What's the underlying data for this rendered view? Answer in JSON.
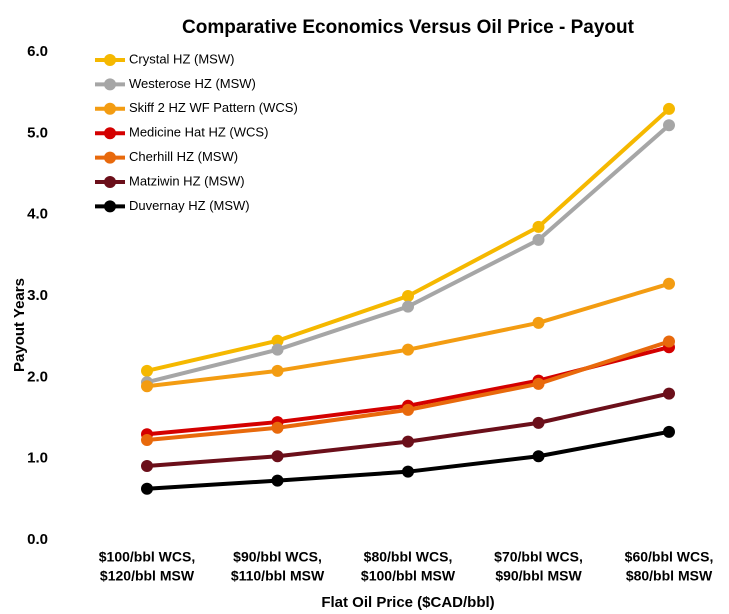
{
  "chart_data": {
    "type": "line",
    "title": "Comparative Economics Versus Oil Price - Payout",
    "x_label": "Flat Oil Price ($CAD/bbl)",
    "y_label": "Payout Years",
    "categories": [
      [
        "$100/bbl WCS,",
        "$120/bbl MSW"
      ],
      [
        "$90/bbl WCS,",
        "$110/bbl MSW"
      ],
      [
        "$80/bbl WCS,",
        "$100/bbl MSW"
      ],
      [
        "$70/bbl WCS,",
        "$90/bbl MSW"
      ],
      [
        "$60/bbl WCS,",
        "$80/bbl MSW"
      ]
    ],
    "ylim": [
      0,
      6
    ],
    "yticks": [
      {
        "value": 0,
        "label": "0.0"
      },
      {
        "value": 1,
        "label": "1.0"
      },
      {
        "value": 2,
        "label": "2.0"
      },
      {
        "value": 3,
        "label": "3.0"
      },
      {
        "value": 4,
        "label": "4.0"
      },
      {
        "value": 5,
        "label": "5.0"
      },
      {
        "value": 6,
        "label": "6.0"
      }
    ],
    "grid": false,
    "legend": "upper-left",
    "series": [
      {
        "name": "Crystal HZ (MSW)",
        "color": "#f5b800",
        "values": [
          2.08,
          2.45,
          3.0,
          3.85,
          5.3
        ]
      },
      {
        "name": "Westerose HZ (MSW)",
        "color": "#a6a6a6",
        "values": [
          1.94,
          2.34,
          2.87,
          3.69,
          5.1
        ]
      },
      {
        "name": "Skiff 2 HZ WF Pattern (WCS)",
        "color": "#f39c12",
        "values": [
          1.89,
          2.08,
          2.34,
          2.67,
          3.15
        ]
      },
      {
        "name": "Medicine Hat HZ (WCS)",
        "color": "#d40000",
        "values": [
          1.3,
          1.45,
          1.65,
          1.96,
          2.37
        ]
      },
      {
        "name": "Cherhill HZ (MSW)",
        "color": "#e8690c",
        "values": [
          1.23,
          1.38,
          1.6,
          1.92,
          2.44
        ]
      },
      {
        "name": "Matziwin HZ (MSW)",
        "color": "#6b0f1a",
        "values": [
          0.91,
          1.03,
          1.21,
          1.44,
          1.8
        ]
      },
      {
        "name": "Duvernay HZ (MSW)",
        "color": "#000000",
        "values": [
          0.63,
          0.73,
          0.84,
          1.03,
          1.33
        ]
      }
    ]
  }
}
